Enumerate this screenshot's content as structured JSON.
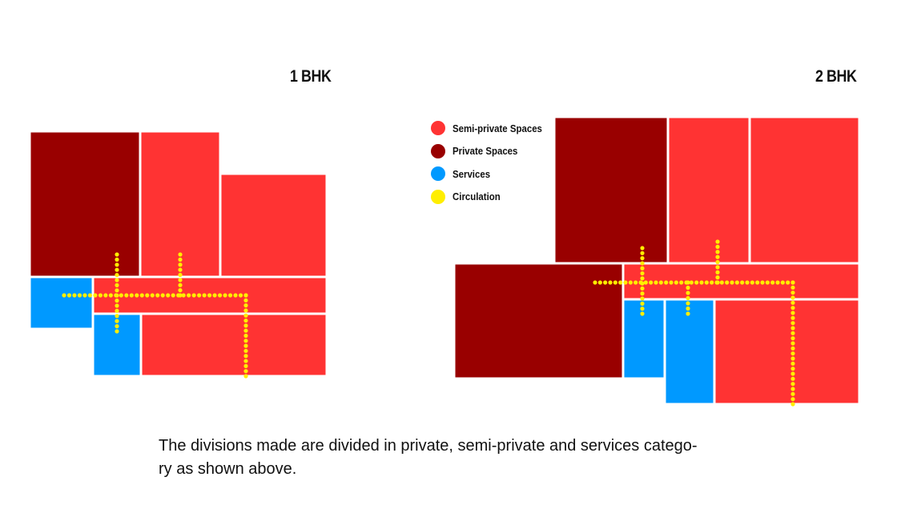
{
  "titles": {
    "one_bhk": "1 BHK",
    "two_bhk": "2 BHK"
  },
  "colors": {
    "semi_private": "#ff3333",
    "private": "#990000",
    "services": "#0099ff",
    "circulation": "#ffee00"
  },
  "legend": [
    {
      "label": "Semi-private Spaces",
      "color": "#ff3333"
    },
    {
      "label": "Private Spaces",
      "color": "#990000"
    },
    {
      "label": "Services",
      "color": "#0099ff"
    },
    {
      "label": "Circulation",
      "color": "#ffee00"
    }
  ],
  "caption": "The divisions made are divided in private, semi-private and services catego-\nry as shown above."
}
